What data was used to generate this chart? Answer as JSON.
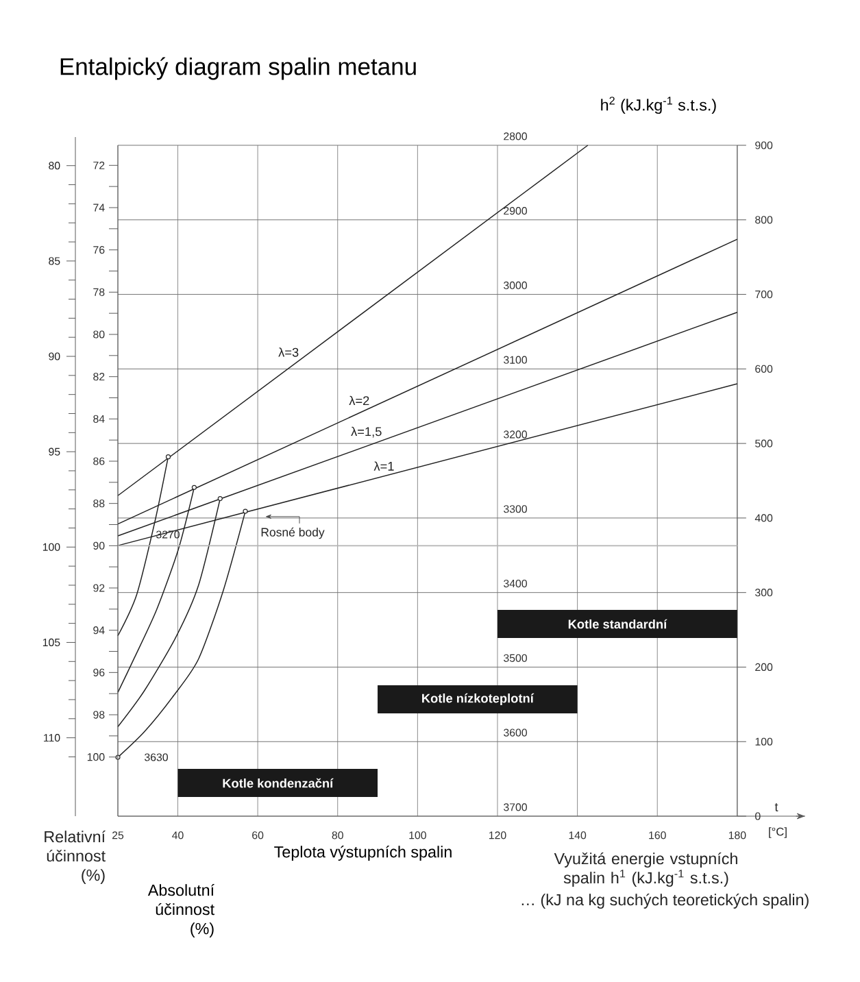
{
  "chart_data": {
    "type": "line",
    "title": "Entalpický diagram spalin metanu",
    "xlabel": "Teplota výstupních spalin",
    "ylabel": "h$^{2}$ (kJ.kg$^{-1}$ s.t.s.)",
    "y3label": "Absolutní účinnost (%)",
    "xlim": [
      25,
      197
    ],
    "xticks": [
      25,
      40,
      60,
      80,
      100,
      120,
      140,
      160,
      180
    ],
    "ylim": [
      0,
      900
    ],
    "yticks": [
      0,
      100,
      200,
      300,
      400,
      500,
      600,
      700,
      800,
      900
    ],
    "y2lim": [
      3700,
      2800
    ],
    "y2ticks": [
      2800,
      2900,
      3000,
      3100,
      3200,
      3300,
      3400,
      3500,
      3600,
      3700
    ],
    "y3lim": [
      102.8,
      71.05
    ],
    "y3ticks": [
      72,
      {
        "value": 73,
        "label": null
      },
      74,
      {
        "value": 75,
        "label": null
      },
      76,
      {
        "value": 77,
        "label": null
      },
      78,
      {
        "value": 79,
        "label": null
      },
      80,
      {
        "value": 81,
        "label": null
      },
      82,
      {
        "value": 83,
        "label": null
      },
      84,
      {
        "value": 85,
        "label": null
      },
      86,
      {
        "value": 87,
        "label": null
      },
      88,
      {
        "value": 89,
        "label": null
      },
      90,
      {
        "value": 91,
        "label": null
      },
      92,
      {
        "value": 93,
        "label": null
      },
      94,
      {
        "value": 95,
        "label": null
      },
      96,
      {
        "value": 97,
        "label": null
      },
      98,
      {
        "value": 99,
        "label": null
      },
      100
    ],
    "grid": true,
    "ref_lines": [
      {
        "axis": "y3",
        "value": 90,
        "color": "#b4b4b4"
      }
    ],
    "bands": [
      {
        "axis": "x",
        "from": 120,
        "to": 180,
        "label": "Kotle standardní",
        "color": "#1a1a1a"
      },
      {
        "axis": "x",
        "from": 90,
        "to": 140,
        "label": "Kotle nízkoteplotní",
        "color": "#1a1a1a"
      },
      {
        "axis": "x",
        "from": 40,
        "to": 90,
        "label": "Kotle kondenzační",
        "color": "#1a1a1a"
      }
    ],
    "series": [
      {
        "name": "λ=3",
        "color": "#222222",
        "x": [
          25,
          142.6
        ],
        "values": [
          430,
          900
        ]
      },
      {
        "name": "λ=2",
        "color": "#222222",
        "x": [
          25,
          180
        ],
        "values": [
          392,
          774
        ]
      },
      {
        "name": "λ=1,5",
        "color": "#222222",
        "x": [
          25,
          180
        ],
        "values": [
          376,
          676
        ]
      },
      {
        "name": "λ=1",
        "color": "#222222",
        "x": [
          25,
          180
        ],
        "values": [
          363,
          580
        ]
      },
      {
        "color": "#222222",
        "x": [
          25,
          29.7,
          34.3,
          37.6
        ],
        "values": [
          242,
          297,
          396,
          482
        ]
      },
      {
        "color": "#222222",
        "x": [
          25,
          29.1,
          34.7,
          40.2,
          44.1
        ],
        "values": [
          166,
          212,
          277,
          359,
          441
        ]
      },
      {
        "color": "#222222",
        "x": [
          25,
          31.6,
          39.6,
          45.2,
          50.6
        ],
        "values": [
          120,
          168,
          241,
          310,
          426
        ]
      },
      {
        "color": "#222222",
        "x": [
          25,
          31.6,
          39.0,
          45.2,
          51.4,
          56.9
        ],
        "values": [
          79,
          113,
          162,
          211,
          303,
          409
        ]
      },
      {
        "type": "scatter",
        "marker": "circle",
        "color": "#222222",
        "x": [
          37.6,
          44.1,
          50.6,
          56.9,
          25
        ],
        "values": [
          482,
          441,
          426,
          409,
          79
        ]
      }
    ],
    "annotations": [
      "Rosné body",
      "3270",
      "3630",
      "t",
      "[°C]",
      "Využitá energie vstupních spalin h$^{1}$ (kJ.kg$^{-1}$ s.t.s.)",
      "… (kJ na kg suchých teoretických spalin)",
      "Relativní účinnost (%)",
      "80",
      "85",
      "90",
      "95",
      "100",
      "105",
      "110"
    ]
  }
}
